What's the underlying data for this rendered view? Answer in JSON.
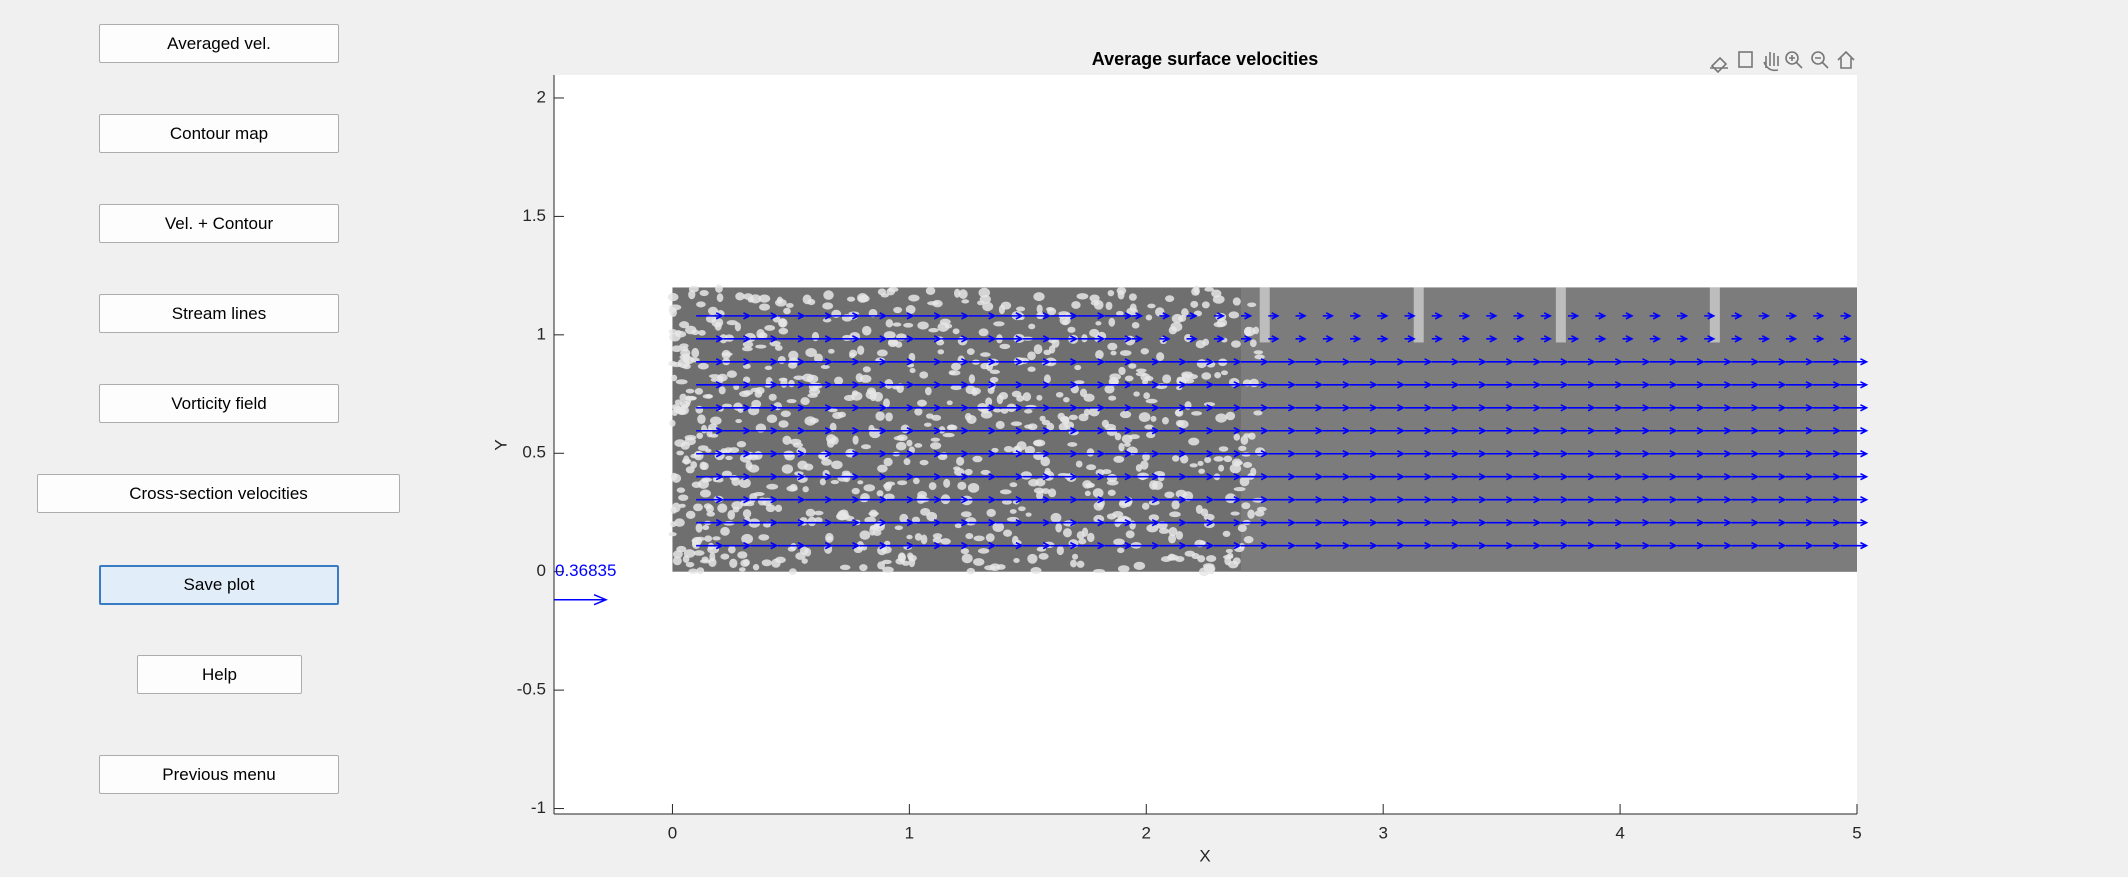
{
  "buttons": [
    "Averaged vel.",
    "Contour map",
    "Vel. + Contour",
    "Stream lines",
    "Vorticity field",
    "Cross-section velocities",
    "Save plot",
    "Help",
    "Previous menu"
  ],
  "plot": {
    "title": "Average surface velocities",
    "xlabel": "X",
    "ylabel": "Y",
    "xlim": [
      -0.5,
      5
    ],
    "ylim": [
      -1.023,
      2.097
    ],
    "xticks": [
      0,
      1,
      2,
      3,
      4,
      5
    ],
    "yticks": [
      -1,
      -0.5,
      0,
      0.5,
      1,
      1.5,
      2
    ],
    "scale_label": 0.36835,
    "arrow_color": "#0000ff"
  }
}
